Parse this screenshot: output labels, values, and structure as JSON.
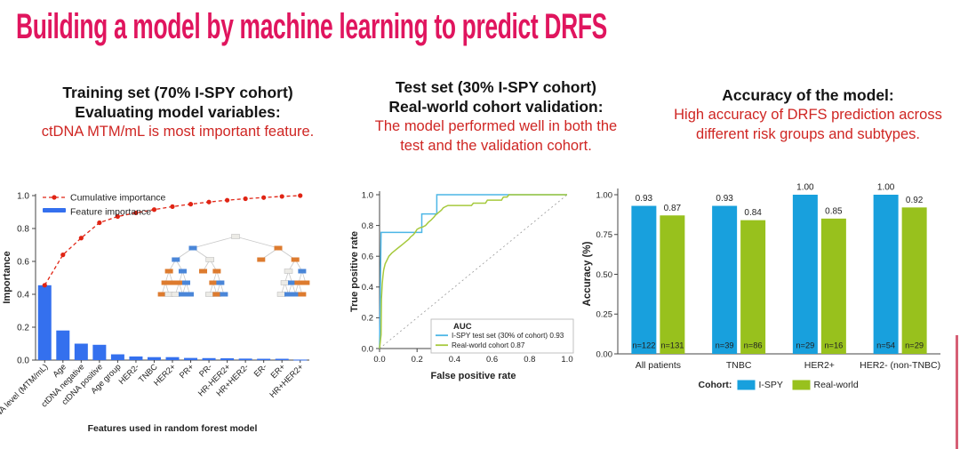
{
  "page": {
    "title": "Building a model by machine learning to predict DRFS",
    "accent_color": "#e0155e"
  },
  "headers": {
    "left": {
      "line1": "Training set (70% I-SPY cohort)",
      "line2": "Evaluating model variables:",
      "highlight": "ctDNA MTM/mL is most important feature."
    },
    "middle": {
      "line1": "Test set (30% I-SPY cohort)",
      "line2": "Real-world cohort validation:",
      "highlight": "The model performed well in both the\ntest and the validation cohort."
    },
    "right": {
      "line1": "Accuracy of the model:",
      "highlight": "High accuracy of DRFS prediction across\ndifferent risk groups and subtypes."
    }
  },
  "chart_data": [
    {
      "id": "feature-importance",
      "type": "bar",
      "title": "",
      "xlabel": "Features used in random forest model",
      "ylabel": "Importance",
      "ylim": [
        0,
        1.05
      ],
      "yticks": [
        "0.0",
        "0.2",
        "0.4",
        "0.6",
        "0.8",
        "1.0"
      ],
      "legend_position": "top-left",
      "categories": [
        "ctDNA level (MTM/mL)",
        "Age",
        "ctDNA negative",
        "ctDNA positive",
        "Age group",
        "HER2-",
        "TNBC",
        "HER2+",
        "PR+",
        "PR-",
        "HR-HER2+",
        "HR+HER2-",
        "ER-",
        "ER+",
        "HR+HER2+"
      ],
      "series": [
        {
          "name": "Feature importance",
          "type": "bar",
          "color": "#3470ee",
          "values": [
            0.455,
            0.18,
            0.1,
            0.093,
            0.035,
            0.022,
            0.018,
            0.018,
            0.013,
            0.012,
            0.011,
            0.009,
            0.008,
            0.008,
            0.003
          ]
        },
        {
          "name": "Cumulative importance",
          "type": "line",
          "style": "dashed",
          "color": "#e02414",
          "values": [
            0.455,
            0.64,
            0.742,
            0.835,
            0.873,
            0.895,
            0.915,
            0.933,
            0.948,
            0.961,
            0.972,
            0.981,
            0.988,
            0.995,
            1.0
          ]
        }
      ],
      "inset": {
        "name": "random-forest-tree",
        "colors": {
          "blue": "#4a86d8",
          "orange": "#dd7b2f",
          "pale": "#ecebe6"
        }
      }
    },
    {
      "id": "roc-validation",
      "type": "line",
      "xlabel": "False positive rate",
      "ylabel": "True positive rate",
      "xlim": [
        0,
        1
      ],
      "ylim": [
        0,
        1
      ],
      "xticks": [
        "0.0",
        "0.2",
        "0.4",
        "0.6",
        "0.8",
        "1.0"
      ],
      "yticks": [
        "0.0",
        "0.2",
        "0.4",
        "0.6",
        "0.8",
        "1.0"
      ],
      "diagonal_reference": true,
      "legend_title": "AUC",
      "legend_position": "lower-right",
      "series": [
        {
          "label": "I-SPY test set (30% of cohort) 0.93",
          "auc": 0.93,
          "color": "#4cb6e6",
          "data_name": "roc-curve-ispy",
          "points": [
            [
              0,
              0
            ],
            [
              0.008,
              0.755
            ],
            [
              0.225,
              0.755
            ],
            [
              0.225,
              0.875
            ],
            [
              0.305,
              0.875
            ],
            [
              0.305,
              1
            ],
            [
              1,
              1
            ]
          ]
        },
        {
          "label": "Real-world cohort 0.87",
          "auc": 0.87,
          "color": "#a6c93d",
          "data_name": "roc-curve-realworld",
          "points": [
            [
              0,
              0
            ],
            [
              0.008,
              0.09
            ],
            [
              0.01,
              0.32
            ],
            [
              0.014,
              0.42
            ],
            [
              0.018,
              0.47
            ],
            [
              0.022,
              0.51
            ],
            [
              0.03,
              0.55
            ],
            [
              0.04,
              0.575
            ],
            [
              0.05,
              0.6
            ],
            [
              0.065,
              0.62
            ],
            [
              0.08,
              0.635
            ],
            [
              0.095,
              0.65
            ],
            [
              0.11,
              0.665
            ],
            [
              0.125,
              0.68
            ],
            [
              0.14,
              0.695
            ],
            [
              0.155,
              0.71
            ],
            [
              0.165,
              0.725
            ],
            [
              0.18,
              0.74
            ],
            [
              0.19,
              0.755
            ],
            [
              0.2,
              0.775
            ],
            [
              0.215,
              0.785
            ],
            [
              0.23,
              0.79
            ],
            [
              0.245,
              0.8
            ],
            [
              0.26,
              0.82
            ],
            [
              0.275,
              0.835
            ],
            [
              0.29,
              0.855
            ],
            [
              0.3,
              0.87
            ],
            [
              0.315,
              0.885
            ],
            [
              0.33,
              0.9
            ],
            [
              0.34,
              0.915
            ],
            [
              0.355,
              0.925
            ],
            [
              0.365,
              0.93
            ],
            [
              0.49,
              0.93
            ],
            [
              0.5,
              0.945
            ],
            [
              0.565,
              0.945
            ],
            [
              0.575,
              0.965
            ],
            [
              0.65,
              0.965
            ],
            [
              0.66,
              0.985
            ],
            [
              0.68,
              0.985
            ],
            [
              0.69,
              1
            ],
            [
              1,
              1
            ]
          ]
        }
      ]
    },
    {
      "id": "accuracy-by-subtype",
      "type": "bar",
      "ylabel": "Accuracy (%)",
      "ylim": [
        0,
        1.08
      ],
      "yticks": [
        "0.00",
        "0.25",
        "0.50",
        "0.75",
        "1.00"
      ],
      "categories": [
        "All patients",
        "TNBC",
        "HER2+",
        "HER2- (non-TNBC)"
      ],
      "legend_label": "Cohort:",
      "legend_position": "bottom",
      "series": [
        {
          "name": "I-SPY",
          "color": "#18a0dd",
          "values": [
            0.93,
            0.93,
            1.0,
            1.0
          ],
          "labels": [
            "0.93",
            "0.93",
            "1.00",
            "1.00"
          ],
          "n": [
            "n=122",
            "n=39",
            "n=29",
            "n=54"
          ]
        },
        {
          "name": "Real-world",
          "color": "#98c11d",
          "values": [
            0.87,
            0.84,
            0.85,
            0.92
          ],
          "labels": [
            "0.87",
            "0.84",
            "0.85",
            "0.92"
          ],
          "n": [
            "n=131",
            "n=86",
            "n=16",
            "n=29"
          ]
        }
      ]
    }
  ],
  "decoration": {
    "right_edge_line_color": "#d65f75"
  }
}
